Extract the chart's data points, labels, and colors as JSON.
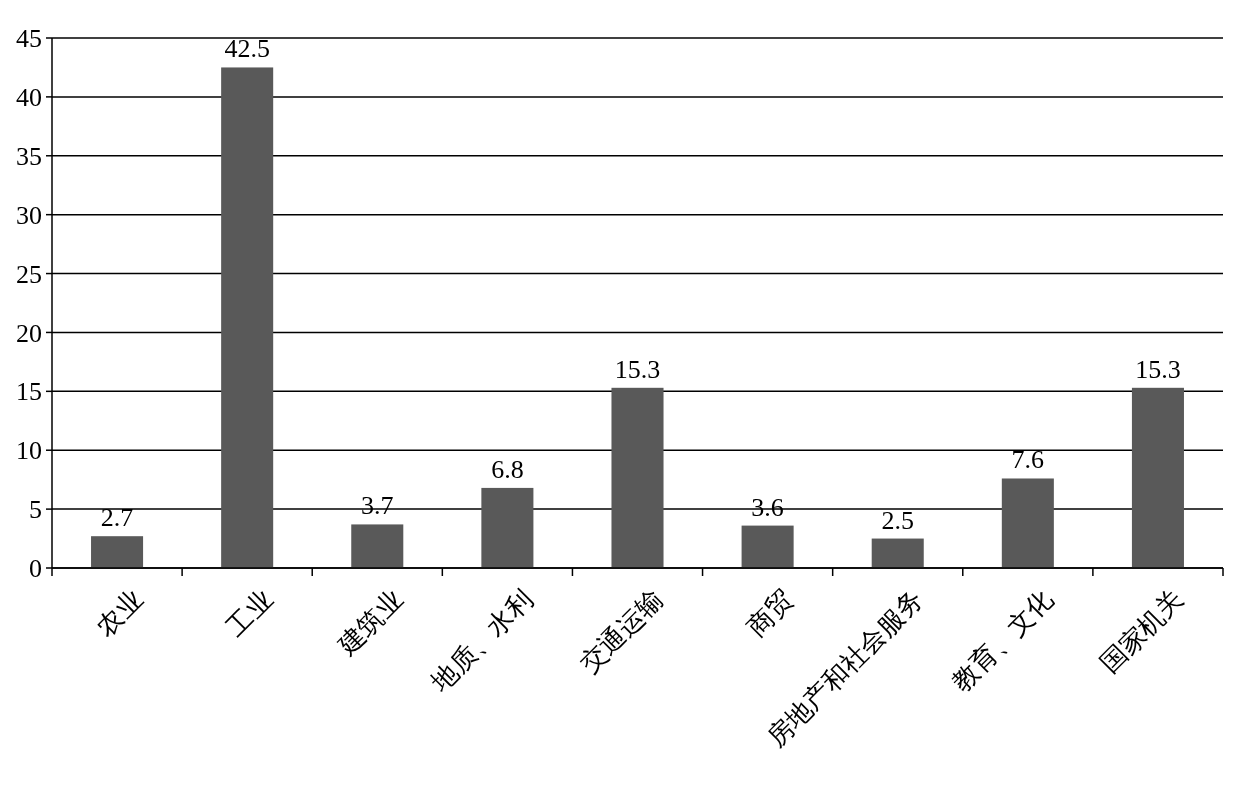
{
  "chart_data": {
    "type": "bar",
    "categories": [
      "农业",
      "工业",
      "建筑业",
      "地质、水利",
      "交通运输",
      "商贸",
      "房地产和社会服务",
      "教育、文化",
      "国家机关"
    ],
    "values": [
      2.7,
      42.5,
      3.7,
      6.8,
      15.3,
      3.6,
      2.5,
      7.6,
      15.3
    ],
    "color": "#595959",
    "ylim": [
      0,
      45
    ],
    "yticks": [
      0,
      5,
      10,
      15,
      20,
      25,
      30,
      35,
      40,
      45
    ],
    "grid": "y",
    "data_labels": true
  }
}
